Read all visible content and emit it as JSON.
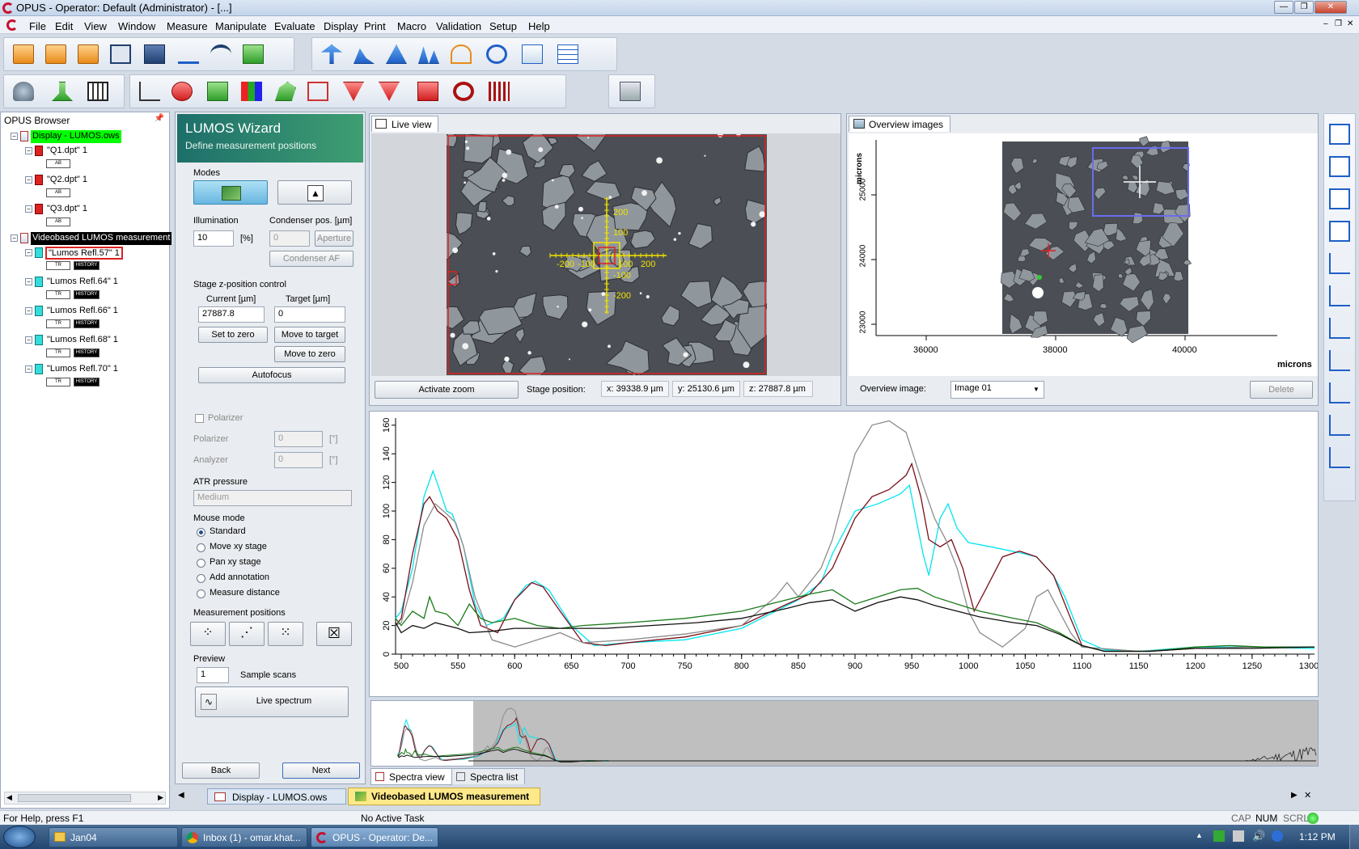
{
  "window": {
    "title": "OPUS - Operator: Default  (Administrator) - [...]"
  },
  "menu": [
    "File",
    "Edit",
    "View",
    "Window",
    "Measure",
    "Manipulate",
    "Evaluate",
    "Display",
    "Print",
    "Macro",
    "Validation",
    "Setup",
    "Help"
  ],
  "browser": {
    "title": "OPUS Browser",
    "items": [
      {
        "label": "Display - LUMOS.ows",
        "level": 0
      },
      {
        "label": "\"Q1.dpt\" 1",
        "level": 1
      },
      {
        "label": "\"Q2.dpt\" 1",
        "level": 1
      },
      {
        "label": "\"Q3.dpt\" 1",
        "level": 1
      },
      {
        "label": "Videobased LUMOS measurement",
        "level": 0
      },
      {
        "label": "\"Lumos Refl.57\" 1",
        "level": 1
      },
      {
        "label": "\"Lumos Refl.64\" 1",
        "level": 1
      },
      {
        "label": "\"Lumos Refl.66\" 1",
        "level": 1
      },
      {
        "label": "\"Lumos Refl.68\" 1",
        "level": 1
      },
      {
        "label": "\"Lumos Refl.70\" 1",
        "level": 1
      }
    ],
    "badge_ab": "AB",
    "badge_tr": "TR",
    "badge_history": "HISTORY"
  },
  "wizard": {
    "title": "LUMOS Wizard",
    "subtitle": "Define measurement positions",
    "modes_label": "Modes",
    "illumination_label": "Illumination",
    "illumination_value": "10",
    "illumination_unit": "[%]",
    "condenser_label": "Condenser pos. [µm]",
    "condenser_value": "0",
    "aperture_label": "Aperture",
    "condenser_af_label": "Condenser AF",
    "stagez_label": "Stage z-position control",
    "current_label": "Current [µm]",
    "target_label": "Target [µm]",
    "current_value": "27887.8",
    "target_value": "0",
    "set_zero": "Set to zero",
    "move_target": "Move to target",
    "move_zero": "Move to zero",
    "autofocus": "Autofocus",
    "polarizer_check": "Polarizer",
    "polarizer_label": "Polarizer",
    "analyzer_label": "Analyzer",
    "pol_value": "0",
    "ana_value": "0",
    "deg_unit": "[°]",
    "atr_label": "ATR pressure",
    "atr_value": "Medium",
    "mouse_mode_label": "Mouse mode",
    "mouse_modes": [
      "Standard",
      "Move xy stage",
      "Pan xy stage",
      "Add annotation",
      "Measure distance"
    ],
    "meas_pos_label": "Measurement positions",
    "preview_label": "Preview",
    "sample_scans_value": "1",
    "sample_scans_label": "Sample scans",
    "live_spectrum": "Live spectrum",
    "back": "Back",
    "next": "Next"
  },
  "liveview": {
    "tab": "Live view",
    "activate_zoom": "Activate zoom",
    "stage_position_label": "Stage position:",
    "x": "x: 39338.9 µm",
    "y": "y: 25130.6 µm",
    "z": "z: 27887.8 µm",
    "scale_labels": [
      "200",
      "100",
      "-200",
      "-100",
      "100",
      "200",
      "-100",
      "-200"
    ]
  },
  "overview": {
    "tab": "Overview images",
    "y_axis_label": "microns",
    "x_axis_label": "microns",
    "x_ticks": [
      "36000",
      "38000",
      "40000"
    ],
    "y_ticks": [
      "25000",
      "24000",
      "23000"
    ],
    "image_label": "Overview image:",
    "image_value": "Image 01",
    "delete": "Delete"
  },
  "chart_data": {
    "type": "line",
    "x_ticks": [
      500,
      550,
      600,
      650,
      700,
      750,
      800,
      850,
      900,
      950,
      1000,
      1050,
      1100,
      1150,
      1200,
      1250,
      1300
    ],
    "y_ticks": [
      0,
      20,
      40,
      60,
      80,
      100,
      120,
      140,
      160
    ],
    "xlim": [
      495,
      1305
    ],
    "ylim": [
      0,
      165
    ],
    "grid": false,
    "series": [
      {
        "color": "#00e5f0",
        "points": [
          [
            495,
            25
          ],
          [
            500,
            30
          ],
          [
            510,
            60
          ],
          [
            520,
            110
          ],
          [
            528,
            128
          ],
          [
            535,
            112
          ],
          [
            540,
            100
          ],
          [
            545,
            98
          ],
          [
            555,
            75
          ],
          [
            565,
            35
          ],
          [
            575,
            20
          ],
          [
            590,
            25
          ],
          [
            600,
            38
          ],
          [
            610,
            48
          ],
          [
            618,
            51
          ],
          [
            630,
            45
          ],
          [
            650,
            20
          ],
          [
            670,
            6
          ],
          [
            700,
            8
          ],
          [
            750,
            10
          ],
          [
            800,
            18
          ],
          [
            850,
            38
          ],
          [
            870,
            50
          ],
          [
            880,
            70
          ],
          [
            900,
            100
          ],
          [
            920,
            105
          ],
          [
            940,
            112
          ],
          [
            948,
            118
          ],
          [
            955,
            90
          ],
          [
            960,
            70
          ],
          [
            965,
            55
          ],
          [
            975,
            95
          ],
          [
            982,
            105
          ],
          [
            990,
            88
          ],
          [
            1000,
            78
          ],
          [
            1020,
            75
          ],
          [
            1050,
            70
          ],
          [
            1060,
            68
          ],
          [
            1075,
            55
          ],
          [
            1085,
            40
          ],
          [
            1100,
            10
          ],
          [
            1120,
            3
          ],
          [
            1150,
            2
          ],
          [
            1200,
            5
          ],
          [
            1250,
            5
          ],
          [
            1300,
            4
          ],
          [
            1305,
            4
          ]
        ]
      },
      {
        "color": "#7a0f1a",
        "points": [
          [
            495,
            20
          ],
          [
            500,
            25
          ],
          [
            510,
            70
          ],
          [
            520,
            105
          ],
          [
            525,
            110
          ],
          [
            532,
            100
          ],
          [
            540,
            95
          ],
          [
            550,
            80
          ],
          [
            560,
            45
          ],
          [
            570,
            20
          ],
          [
            585,
            15
          ],
          [
            600,
            38
          ],
          [
            615,
            50
          ],
          [
            625,
            47
          ],
          [
            640,
            30
          ],
          [
            660,
            8
          ],
          [
            680,
            6
          ],
          [
            700,
            8
          ],
          [
            750,
            12
          ],
          [
            800,
            20
          ],
          [
            840,
            35
          ],
          [
            860,
            42
          ],
          [
            880,
            60
          ],
          [
            900,
            95
          ],
          [
            915,
            110
          ],
          [
            930,
            115
          ],
          [
            945,
            125
          ],
          [
            950,
            133
          ],
          [
            958,
            110
          ],
          [
            965,
            80
          ],
          [
            975,
            75
          ],
          [
            985,
            80
          ],
          [
            995,
            60
          ],
          [
            1005,
            30
          ],
          [
            1015,
            45
          ],
          [
            1030,
            68
          ],
          [
            1045,
            72
          ],
          [
            1060,
            68
          ],
          [
            1075,
            55
          ],
          [
            1090,
            25
          ],
          [
            1100,
            6
          ],
          [
            1120,
            2
          ],
          [
            1160,
            2
          ],
          [
            1200,
            4
          ],
          [
            1250,
            5
          ],
          [
            1305,
            5
          ]
        ]
      },
      {
        "color": "#8c8c8c",
        "points": [
          [
            495,
            20
          ],
          [
            500,
            22
          ],
          [
            510,
            50
          ],
          [
            520,
            90
          ],
          [
            530,
            105
          ],
          [
            540,
            98
          ],
          [
            548,
            92
          ],
          [
            555,
            75
          ],
          [
            565,
            40
          ],
          [
            580,
            10
          ],
          [
            600,
            5
          ],
          [
            620,
            10
          ],
          [
            640,
            15
          ],
          [
            660,
            8
          ],
          [
            700,
            10
          ],
          [
            750,
            14
          ],
          [
            800,
            20
          ],
          [
            830,
            40
          ],
          [
            840,
            50
          ],
          [
            850,
            40
          ],
          [
            870,
            60
          ],
          [
            880,
            80
          ],
          [
            900,
            140
          ],
          [
            915,
            160
          ],
          [
            930,
            163
          ],
          [
            945,
            155
          ],
          [
            960,
            118
          ],
          [
            970,
            95
          ],
          [
            980,
            80
          ],
          [
            990,
            60
          ],
          [
            1000,
            30
          ],
          [
            1010,
            15
          ],
          [
            1030,
            5
          ],
          [
            1050,
            18
          ],
          [
            1060,
            40
          ],
          [
            1070,
            45
          ],
          [
            1080,
            30
          ],
          [
            1090,
            15
          ],
          [
            1100,
            5
          ],
          [
            1150,
            2
          ],
          [
            1200,
            4
          ],
          [
            1250,
            5
          ],
          [
            1305,
            5
          ]
        ]
      },
      {
        "color": "#1a7a1a",
        "points": [
          [
            495,
            25
          ],
          [
            500,
            20
          ],
          [
            510,
            30
          ],
          [
            520,
            25
          ],
          [
            525,
            40
          ],
          [
            530,
            30
          ],
          [
            540,
            28
          ],
          [
            550,
            20
          ],
          [
            560,
            35
          ],
          [
            570,
            25
          ],
          [
            580,
            22
          ],
          [
            600,
            25
          ],
          [
            620,
            20
          ],
          [
            640,
            18
          ],
          [
            660,
            20
          ],
          [
            700,
            22
          ],
          [
            750,
            25
          ],
          [
            800,
            30
          ],
          [
            840,
            38
          ],
          [
            860,
            42
          ],
          [
            880,
            45
          ],
          [
            900,
            35
          ],
          [
            920,
            40
          ],
          [
            940,
            45
          ],
          [
            955,
            46
          ],
          [
            970,
            40
          ],
          [
            990,
            35
          ],
          [
            1010,
            30
          ],
          [
            1040,
            25
          ],
          [
            1060,
            22
          ],
          [
            1080,
            15
          ],
          [
            1100,
            6
          ],
          [
            1120,
            2
          ],
          [
            1160,
            2
          ],
          [
            1200,
            5
          ],
          [
            1230,
            6
          ],
          [
            1260,
            5
          ],
          [
            1305,
            5
          ]
        ]
      },
      {
        "color": "#111111",
        "points": [
          [
            495,
            22
          ],
          [
            500,
            15
          ],
          [
            510,
            20
          ],
          [
            520,
            18
          ],
          [
            530,
            22
          ],
          [
            540,
            20
          ],
          [
            550,
            18
          ],
          [
            560,
            15
          ],
          [
            580,
            16
          ],
          [
            600,
            18
          ],
          [
            640,
            18
          ],
          [
            680,
            18
          ],
          [
            720,
            20
          ],
          [
            760,
            22
          ],
          [
            800,
            25
          ],
          [
            840,
            32
          ],
          [
            860,
            36
          ],
          [
            880,
            38
          ],
          [
            900,
            30
          ],
          [
            920,
            36
          ],
          [
            940,
            40
          ],
          [
            955,
            38
          ],
          [
            970,
            34
          ],
          [
            990,
            30
          ],
          [
            1010,
            26
          ],
          [
            1040,
            22
          ],
          [
            1060,
            20
          ],
          [
            1080,
            14
          ],
          [
            1100,
            6
          ],
          [
            1120,
            2
          ],
          [
            1160,
            2
          ],
          [
            1200,
            4
          ],
          [
            1250,
            4
          ],
          [
            1305,
            5
          ]
        ]
      }
    ]
  },
  "bottom_tabs": {
    "spectra_view": "Spectra view",
    "spectra_list": "Spectra list"
  },
  "doc_tabs": [
    "Display - LUMOS.ows",
    "Videobased LUMOS measurement"
  ],
  "status": {
    "help": "For Help, press F1",
    "task": "No Active Task",
    "cap": "CAP",
    "num": "NUM",
    "scrl": "SCRL"
  },
  "taskbar": {
    "items": [
      "Jan04",
      "Inbox (1) - omar.khat...",
      "OPUS - Operator: De..."
    ],
    "clock": "1:12 PM"
  },
  "colors": {
    "accent_green": "#2b8a6a",
    "highlight": "#00ff00",
    "blue": "#1f5fc8"
  }
}
